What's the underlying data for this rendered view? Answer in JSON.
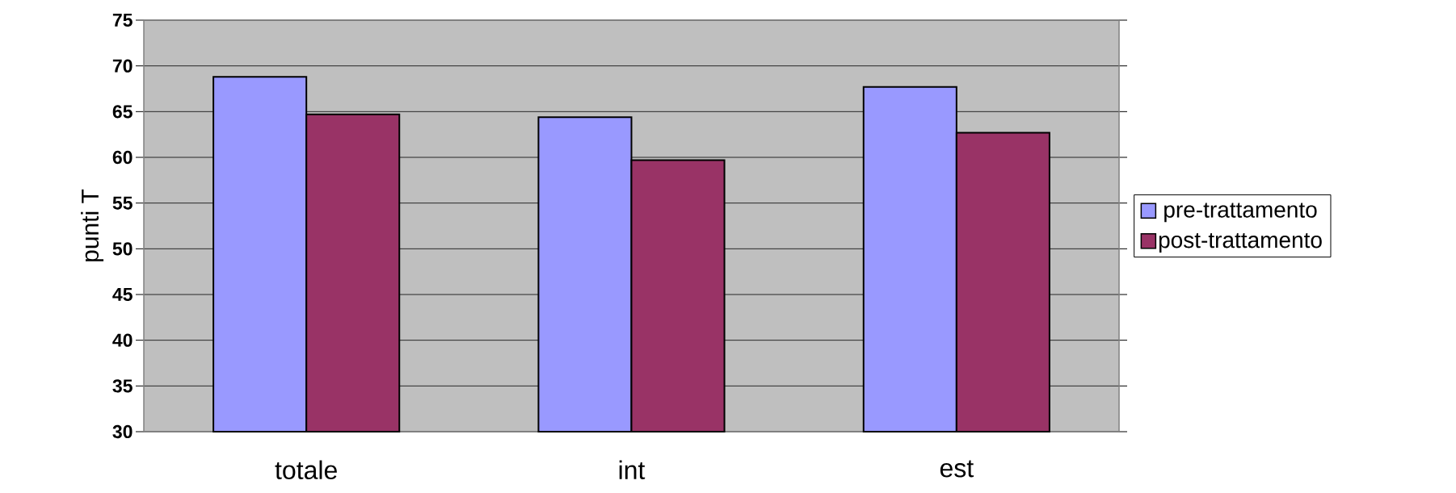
{
  "chart_data": {
    "type": "bar",
    "ylabel": "punti T",
    "categories": [
      "totale",
      "int",
      "est"
    ],
    "series": [
      {
        "name": "pre-trattamento",
        "color": "#9999ff",
        "values": [
          68.8,
          64.4,
          67.7
        ]
      },
      {
        "name": "post-trattamento",
        "color": "#993366",
        "values": [
          64.7,
          59.7,
          62.7
        ]
      }
    ],
    "ylim": [
      30,
      75
    ],
    "yticks": [
      30,
      35,
      40,
      45,
      50,
      55,
      60,
      65,
      70,
      75
    ],
    "grid": "y",
    "legend": "right"
  }
}
